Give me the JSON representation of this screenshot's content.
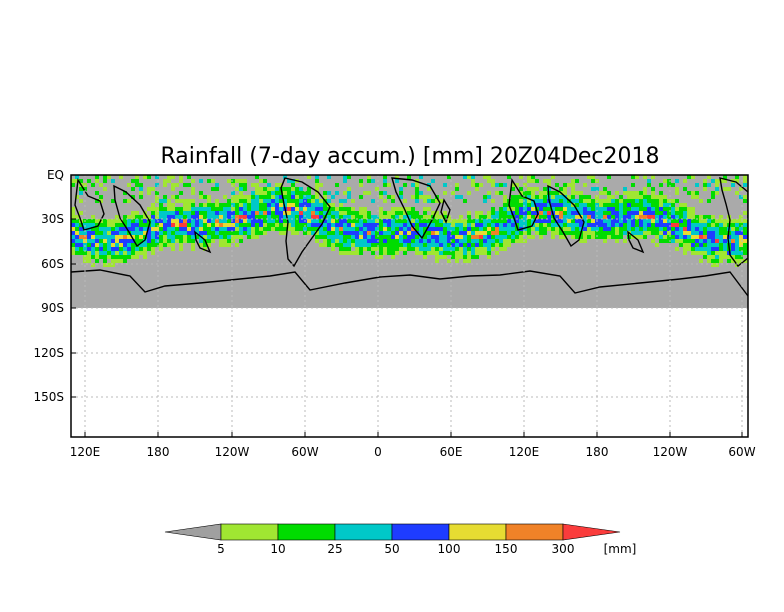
{
  "map": {
    "title": "Rainfall (7-day accum.) [mm] 20Z04Dec2018",
    "lat_ticks": [
      "EQ",
      "30S",
      "60S",
      "90S",
      "120S",
      "150S"
    ],
    "lon_ticks": [
      "120E",
      "180",
      "120W",
      "60W",
      "0",
      "60E",
      "120E",
      "180",
      "120W",
      "60W"
    ],
    "grid": true,
    "data_extent": "EQ to 90S",
    "land_mask_color": "#aaaaaa"
  },
  "colorbar": {
    "unit": "[mm]",
    "levels": [
      "5",
      "10",
      "25",
      "50",
      "100",
      "150",
      "300"
    ],
    "colors": [
      "#a0a0a0",
      "#a0e632",
      "#00dc00",
      "#00c8c8",
      "#1e3cff",
      "#e6dc32",
      "#f08228",
      "#fa3c3c"
    ]
  }
}
